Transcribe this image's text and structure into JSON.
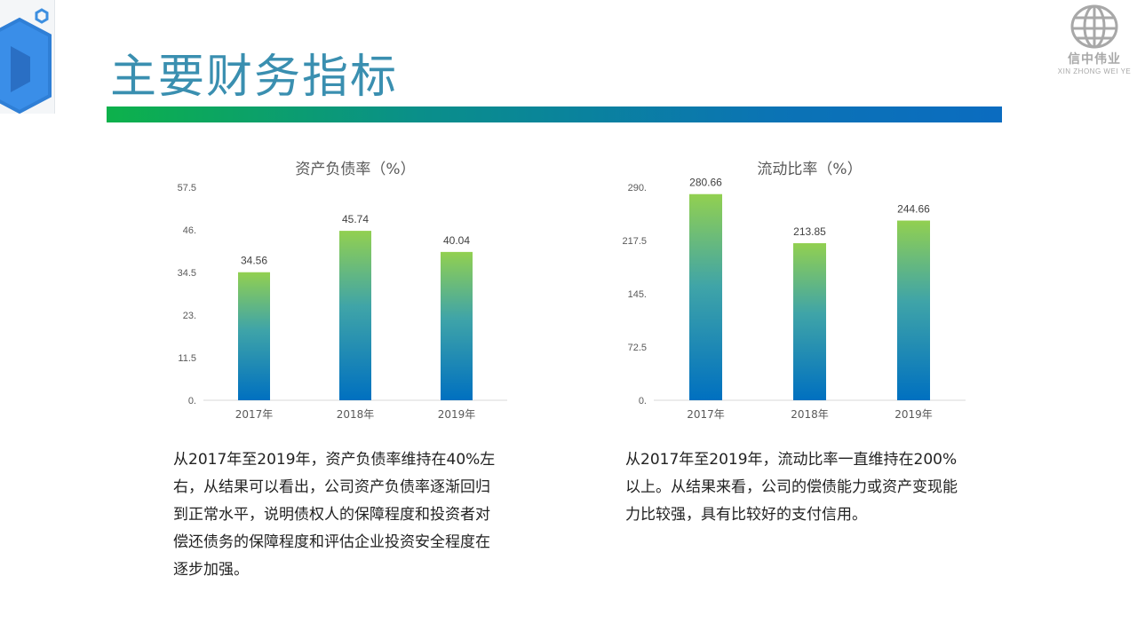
{
  "page": {
    "title": "主要财务指标"
  },
  "logo": {
    "name": "信中伟业",
    "subtitle": "XIN ZHONG WEI YE"
  },
  "colors": {
    "accent": "#3a8fb0",
    "bar_top": "#92d050",
    "bar_bottom": "#0070c0"
  },
  "chart_data": [
    {
      "type": "bar",
      "title": "资产负债率（%）",
      "categories": [
        "2017年",
        "2018年",
        "2019年"
      ],
      "values": [
        34.56,
        45.74,
        40.04
      ],
      "value_labels": [
        "34.56",
        "45.74",
        "40.04"
      ],
      "ylim": [
        0,
        57.5
      ],
      "yticks": [
        0,
        11.5,
        23,
        34.5,
        46,
        57.5
      ],
      "ytick_labels": [
        "0.",
        "11.5",
        "23.",
        "34.5",
        "46.",
        "57.5"
      ],
      "xlabel": "",
      "ylabel": "",
      "grid": false
    },
    {
      "type": "bar",
      "title": "流动比率（%）",
      "categories": [
        "2017年",
        "2018年",
        "2019年"
      ],
      "values": [
        280.66,
        213.85,
        244.66
      ],
      "value_labels": [
        "280.66",
        "213.85",
        "244.66"
      ],
      "ylim": [
        0,
        290
      ],
      "yticks": [
        0,
        72.5,
        145,
        217.5,
        290
      ],
      "ytick_labels": [
        "0.",
        "72.5",
        "145.",
        "217.5",
        "290."
      ],
      "xlabel": "",
      "ylabel": "",
      "grid": false
    }
  ],
  "descriptions": {
    "left": "从2017年至2019年，资产负债率维持在40%左右，从结果可以看出，公司资产负债率逐渐回归到正常水平，说明债权人的保障程度和投资者对偿还债务的保障程度和评估企业投资安全程度在逐步加强。",
    "right": "从2017年至2019年，流动比率一直维持在200%以上。从结果来看，公司的偿债能力或资产变现能力比较强，具有比较好的支付信用。"
  }
}
